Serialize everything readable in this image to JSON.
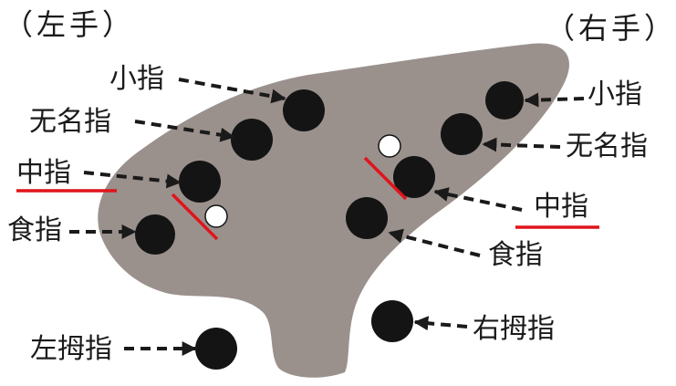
{
  "hands": {
    "left": "（左手）",
    "right": "（右手）"
  },
  "left_labels": {
    "little": "小指",
    "ring": "无名指",
    "middle": "中指",
    "index": "食指",
    "thumb": "左拇指"
  },
  "right_labels": {
    "little": "小指",
    "ring": "无名指",
    "middle": "中指",
    "index": "食指",
    "thumb": "右拇指"
  },
  "colors": {
    "body": "#9a918d",
    "hole": "#141414",
    "highlight": "#e0141c"
  }
}
